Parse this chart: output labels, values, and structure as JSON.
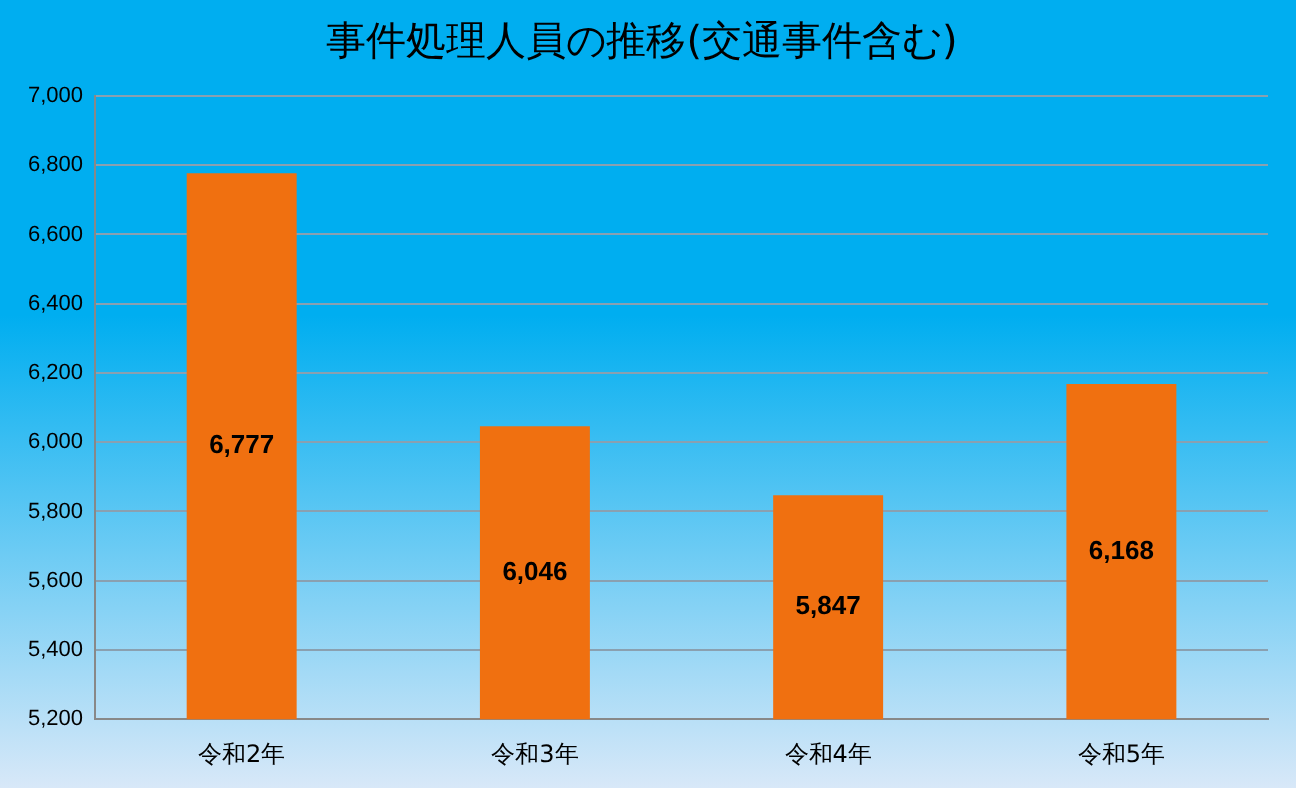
{
  "chart_data": {
    "type": "bar",
    "title": "事件処理人員の推移(交通事件含む)",
    "categories": [
      "令和2年",
      "令和3年",
      "令和4年",
      "令和5年"
    ],
    "values": [
      6777,
      6046,
      5847,
      6168
    ],
    "color": "#f07010",
    "ylim": [
      5200,
      7000
    ],
    "yticks": [
      {
        "value": 5200,
        "label": "5,200"
      },
      {
        "value": 5400,
        "label": "5,400"
      },
      {
        "value": 5600,
        "label": "5,600"
      },
      {
        "value": 5800,
        "label": "5,800"
      },
      {
        "value": 6000,
        "label": "6,000"
      },
      {
        "value": 6200,
        "label": "6,200"
      },
      {
        "value": 6400,
        "label": "6,400"
      },
      {
        "value": 6600,
        "label": "6,600"
      },
      {
        "value": 6800,
        "label": "6,800"
      },
      {
        "value": 7000,
        "label": "7,000"
      }
    ],
    "value_labels": [
      "6,777",
      "6,046",
      "5,847",
      "6,168"
    ],
    "grid": "y",
    "legend": false
  }
}
